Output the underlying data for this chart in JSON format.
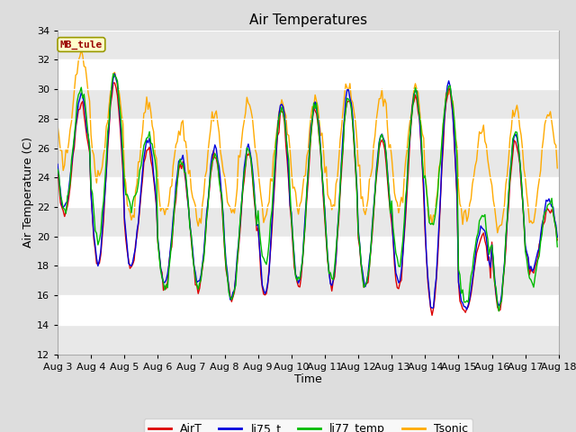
{
  "title": "Air Temperatures",
  "xlabel": "Time",
  "ylabel": "Air Temperature (C)",
  "ylim": [
    12,
    34
  ],
  "yticks": [
    12,
    14,
    16,
    18,
    20,
    22,
    24,
    26,
    28,
    30,
    32,
    34
  ],
  "xtick_labels": [
    "Aug 3",
    "Aug 4",
    "Aug 5",
    "Aug 6",
    "Aug 7",
    "Aug 8",
    "Aug 9",
    "Aug 10",
    "Aug 11",
    "Aug 12",
    "Aug 13",
    "Aug 14",
    "Aug 15",
    "Aug 16",
    "Aug 17",
    "Aug 18"
  ],
  "series_colors": {
    "AirT": "#dd0000",
    "li75_t": "#0000dd",
    "li77_temp": "#00bb00",
    "Tsonic": "#ffaa00"
  },
  "station_label": "MB_tule",
  "station_label_color": "#990000",
  "station_box_facecolor": "#ffffcc",
  "station_box_edgecolor": "#999900",
  "fig_facecolor": "#dddddd",
  "plot_facecolor": "#ffffff",
  "title_fontsize": 11,
  "axis_label_fontsize": 9,
  "tick_fontsize": 8,
  "legend_fontsize": 9,
  "linewidth": 1.0,
  "airt_mins": [
    21.5,
    18.0,
    17.8,
    16.5,
    16.5,
    15.5,
    15.8,
    16.5,
    16.5,
    16.5,
    16.5,
    14.8,
    14.8,
    15.0,
    17.5
  ],
  "airt_maxs": [
    29.0,
    30.5,
    26.0,
    25.0,
    25.5,
    25.5,
    28.5,
    28.5,
    29.5,
    26.5,
    29.5,
    30.0,
    20.0,
    26.5,
    22.0
  ],
  "li75_mins": [
    22.0,
    18.3,
    18.0,
    16.8,
    16.8,
    15.8,
    16.0,
    16.8,
    16.8,
    16.8,
    16.8,
    15.0,
    15.0,
    15.2,
    17.7
  ],
  "li75_maxs": [
    29.5,
    31.0,
    26.5,
    25.5,
    26.0,
    26.0,
    29.0,
    29.0,
    30.0,
    27.0,
    30.0,
    30.5,
    20.5,
    27.0,
    22.5
  ],
  "li77_mins": [
    21.8,
    19.8,
    22.0,
    16.5,
    16.5,
    15.6,
    18.0,
    16.8,
    17.0,
    16.6,
    18.0,
    20.5,
    15.5,
    15.2,
    17.0
  ],
  "li77_maxs": [
    30.0,
    31.0,
    27.0,
    25.2,
    25.5,
    25.8,
    28.7,
    28.8,
    29.5,
    27.0,
    29.8,
    30.2,
    21.5,
    27.0,
    22.5
  ],
  "tsonic_mins": [
    25.0,
    24.0,
    21.5,
    21.5,
    21.0,
    21.5,
    21.5,
    22.0,
    22.0,
    22.0,
    22.0,
    21.0,
    21.0,
    20.5,
    21.0
  ],
  "tsonic_maxs": [
    32.5,
    30.8,
    29.0,
    27.5,
    28.5,
    29.0,
    29.0,
    29.0,
    30.3,
    30.0,
    30.0,
    30.0,
    27.0,
    28.5,
    28.5
  ]
}
